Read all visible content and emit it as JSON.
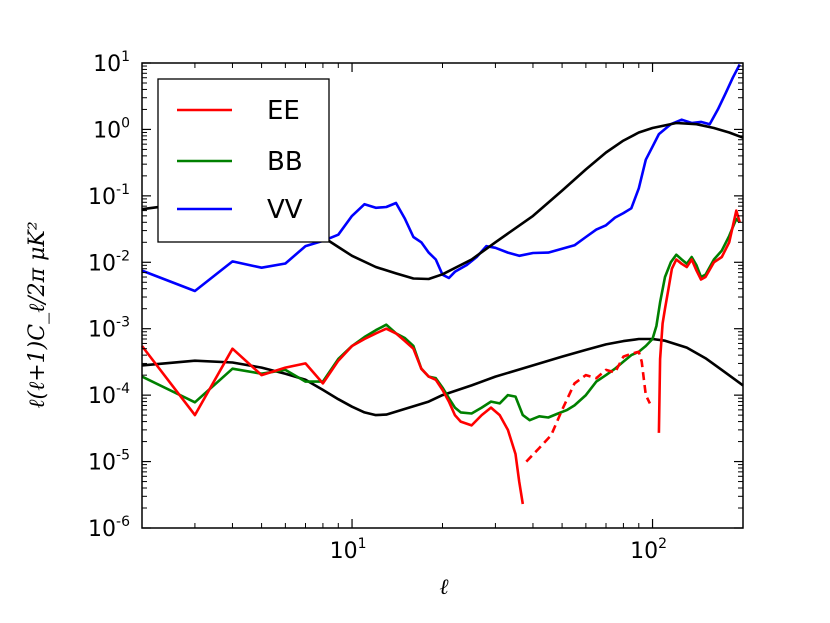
{
  "chart_data": {
    "type": "line",
    "title": "",
    "xlabel": "ℓ",
    "ylabel": "ℓ(ℓ+1)C_ℓ/2π μK²",
    "xscale": "log",
    "yscale": "log",
    "xlim": [
      2,
      200
    ],
    "ylim": [
      1e-06,
      10
    ],
    "grid": false,
    "legend": {
      "position": "top-left",
      "entries": [
        "EE",
        "BB",
        "VV"
      ]
    },
    "x_ticks": [
      {
        "value": 10,
        "base": "10",
        "exp": "1"
      },
      {
        "value": 100,
        "base": "10",
        "exp": "2"
      }
    ],
    "y_ticks": [
      {
        "value": 1e-06,
        "base": "10",
        "exp": "-6"
      },
      {
        "value": 1e-05,
        "base": "10",
        "exp": "-5"
      },
      {
        "value": 0.0001,
        "base": "10",
        "exp": "-4"
      },
      {
        "value": 0.001,
        "base": "10",
        "exp": "-3"
      },
      {
        "value": 0.01,
        "base": "10",
        "exp": "-2"
      },
      {
        "value": 0.1,
        "base": "10",
        "exp": "-1"
      },
      {
        "value": 1,
        "base": "10",
        "exp": "0"
      },
      {
        "value": 10,
        "base": "10",
        "exp": "1"
      }
    ],
    "series": [
      {
        "name": "VV",
        "color": "#0000ff",
        "style": "solid",
        "points": [
          [
            2,
            0.0075
          ],
          [
            3,
            0.0037
          ],
          [
            4,
            0.0103
          ],
          [
            5,
            0.0083
          ],
          [
            6,
            0.0096
          ],
          [
            7,
            0.0175
          ],
          [
            8,
            0.021
          ],
          [
            9,
            0.026
          ],
          [
            10,
            0.05
          ],
          [
            11,
            0.075
          ],
          [
            12,
            0.066
          ],
          [
            13,
            0.068
          ],
          [
            14,
            0.078
          ],
          [
            15,
            0.045
          ],
          [
            16,
            0.024
          ],
          [
            17,
            0.02
          ],
          [
            18,
            0.014
          ],
          [
            19,
            0.011
          ],
          [
            20,
            0.0065
          ],
          [
            21,
            0.0058
          ],
          [
            22,
            0.0072
          ],
          [
            24,
            0.009
          ],
          [
            26,
            0.012
          ],
          [
            28,
            0.0175
          ],
          [
            30,
            0.0165
          ],
          [
            33,
            0.014
          ],
          [
            36,
            0.0125
          ],
          [
            40,
            0.0138
          ],
          [
            45,
            0.014
          ],
          [
            50,
            0.016
          ],
          [
            55,
            0.018
          ],
          [
            60,
            0.024
          ],
          [
            65,
            0.031
          ],
          [
            70,
            0.036
          ],
          [
            75,
            0.047
          ],
          [
            80,
            0.055
          ],
          [
            85,
            0.065
          ],
          [
            90,
            0.13
          ],
          [
            95,
            0.35
          ],
          [
            100,
            0.55
          ],
          [
            105,
            0.85
          ],
          [
            115,
            1.2
          ],
          [
            125,
            1.4
          ],
          [
            135,
            1.25
          ],
          [
            145,
            1.3
          ],
          [
            155,
            1.2
          ],
          [
            165,
            2.0
          ],
          [
            175,
            3.5
          ],
          [
            185,
            6.0
          ],
          [
            195,
            9.5
          ]
        ]
      },
      {
        "name": "",
        "color": "#000000",
        "style": "solid",
        "points": [
          [
            2,
            0.063
          ],
          [
            3,
            0.08
          ],
          [
            4,
            0.072
          ],
          [
            5,
            0.058
          ],
          [
            6,
            0.044
          ],
          [
            7,
            0.033
          ],
          [
            8,
            0.024
          ],
          [
            9,
            0.017
          ],
          [
            10,
            0.0125
          ],
          [
            12,
            0.0085
          ],
          [
            14,
            0.0068
          ],
          [
            16,
            0.0057
          ],
          [
            18,
            0.0056
          ],
          [
            20,
            0.0066
          ],
          [
            25,
            0.011
          ],
          [
            30,
            0.02
          ],
          [
            40,
            0.05
          ],
          [
            50,
            0.12
          ],
          [
            60,
            0.25
          ],
          [
            70,
            0.45
          ],
          [
            80,
            0.68
          ],
          [
            90,
            0.9
          ],
          [
            100,
            1.05
          ],
          [
            120,
            1.25
          ],
          [
            140,
            1.2
          ],
          [
            160,
            1.05
          ],
          [
            180,
            0.9
          ],
          [
            200,
            0.75
          ]
        ]
      },
      {
        "name": "",
        "color": "#000000",
        "style": "solid",
        "points": [
          [
            2,
            0.00028
          ],
          [
            3,
            0.00033
          ],
          [
            4,
            0.00031
          ],
          [
            5,
            0.00026
          ],
          [
            6,
            0.00021
          ],
          [
            7,
            0.00017
          ],
          [
            8,
            0.00012
          ],
          [
            9,
            8.7e-05
          ],
          [
            10,
            6.7e-05
          ],
          [
            11,
            5.5e-05
          ],
          [
            12,
            5e-05
          ],
          [
            13,
            5.1e-05
          ],
          [
            15,
            6.2e-05
          ],
          [
            18,
            8e-05
          ],
          [
            20,
            0.0001
          ],
          [
            25,
            0.00014
          ],
          [
            30,
            0.00019
          ],
          [
            40,
            0.00028
          ],
          [
            50,
            0.00038
          ],
          [
            60,
            0.00048
          ],
          [
            70,
            0.00058
          ],
          [
            80,
            0.00065
          ],
          [
            90,
            0.0007
          ],
          [
            100,
            0.0007
          ],
          [
            110,
            0.00066
          ],
          [
            130,
            0.00052
          ],
          [
            150,
            0.00036
          ],
          [
            170,
            0.00024
          ],
          [
            200,
            0.00014
          ]
        ]
      },
      {
        "name": "BB",
        "color": "#008000",
        "style": "solid",
        "points": [
          [
            2,
            0.00019
          ],
          [
            3,
            7.8e-05
          ],
          [
            4,
            0.00025
          ],
          [
            5,
            0.00021
          ],
          [
            6,
            0.00024
          ],
          [
            7,
            0.00016
          ],
          [
            8,
            0.00016
          ],
          [
            9,
            0.00035
          ],
          [
            10,
            0.00055
          ],
          [
            11,
            0.00075
          ],
          [
            12,
            0.00095
          ],
          [
            13,
            0.00115
          ],
          [
            14,
            0.00085
          ],
          [
            15,
            0.00072
          ],
          [
            16,
            0.00055
          ],
          [
            17,
            0.00025
          ],
          [
            18,
            0.00019
          ],
          [
            19,
            0.00018
          ],
          [
            20,
            0.00013
          ],
          [
            21,
            9e-05
          ],
          [
            22,
            6.5e-05
          ],
          [
            23,
            5.5e-05
          ],
          [
            25,
            5.3e-05
          ],
          [
            27,
            6.5e-05
          ],
          [
            29,
            8e-05
          ],
          [
            31,
            7.5e-05
          ],
          [
            33,
            0.0001
          ],
          [
            35,
            9.5e-05
          ],
          [
            37,
            5e-05
          ],
          [
            39,
            4.2e-05
          ],
          [
            42,
            4.8e-05
          ],
          [
            45,
            4.6e-05
          ],
          [
            48,
            5.2e-05
          ],
          [
            52,
            6e-05
          ],
          [
            55,
            7e-05
          ],
          [
            60,
            0.0001
          ],
          [
            65,
            0.00016
          ],
          [
            70,
            0.0002
          ],
          [
            75,
            0.00025
          ],
          [
            80,
            0.00032
          ],
          [
            85,
            0.0004
          ],
          [
            90,
            0.00045
          ],
          [
            95,
            0.00055
          ],
          [
            100,
            0.0007
          ],
          [
            103,
            0.0011
          ],
          [
            106,
            0.0025
          ],
          [
            110,
            0.006
          ],
          [
            115,
            0.01
          ],
          [
            120,
            0.013
          ],
          [
            125,
            0.011
          ],
          [
            130,
            0.0095
          ],
          [
            135,
            0.012
          ],
          [
            140,
            0.009
          ],
          [
            145,
            0.006
          ],
          [
            150,
            0.0065
          ],
          [
            160,
            0.011
          ],
          [
            170,
            0.015
          ],
          [
            180,
            0.025
          ],
          [
            190,
            0.045
          ],
          [
            195,
            0.04
          ]
        ]
      },
      {
        "name": "EE",
        "color": "#ff0000",
        "style": "solid",
        "points": [
          [
            2,
            0.00055
          ],
          [
            3,
            5e-05
          ],
          [
            4,
            0.0005
          ],
          [
            5,
            0.0002
          ],
          [
            6,
            0.00026
          ],
          [
            7,
            0.0003
          ],
          [
            8,
            0.00015
          ],
          [
            9,
            0.00033
          ],
          [
            10,
            0.00055
          ],
          [
            11,
            0.0007
          ],
          [
            12,
            0.00085
          ],
          [
            13,
            0.001
          ],
          [
            14,
            0.00085
          ],
          [
            15,
            0.00065
          ],
          [
            16,
            0.0005
          ],
          [
            17,
            0.00025
          ],
          [
            18,
            0.00019
          ],
          [
            19,
            0.00017
          ],
          [
            20,
            0.00012
          ],
          [
            21,
            8e-05
          ],
          [
            22,
            5e-05
          ],
          [
            23,
            4e-05
          ],
          [
            25,
            3.5e-05
          ],
          [
            27,
            5e-05
          ],
          [
            29,
            6.5e-05
          ],
          [
            31,
            5e-05
          ],
          [
            33,
            3e-05
          ],
          [
            35,
            1.3e-05
          ],
          [
            36,
            5e-06
          ],
          [
            37,
            2.3e-06
          ]
        ]
      },
      {
        "name": "",
        "color": "#ff0000",
        "style": "dashed",
        "points": [
          [
            38,
            1e-05
          ],
          [
            42,
            1.6e-05
          ],
          [
            46,
            2.5e-05
          ],
          [
            50,
            6e-05
          ],
          [
            55,
            0.00015
          ],
          [
            60,
            0.0002
          ],
          [
            65,
            0.00018
          ],
          [
            70,
            0.00024
          ],
          [
            75,
            0.00022
          ],
          [
            80,
            0.00038
          ],
          [
            85,
            0.00042
          ],
          [
            90,
            0.00045
          ],
          [
            92,
            0.00032
          ],
          [
            95,
            0.0001
          ],
          [
            98,
            7.5e-05
          ]
        ]
      },
      {
        "name": "",
        "color": "#ff0000",
        "style": "solid",
        "points": [
          [
            105,
            2.7e-05
          ],
          [
            106,
            0.00035
          ],
          [
            108,
            0.0012
          ],
          [
            110,
            0.002
          ],
          [
            113,
            0.004
          ],
          [
            116,
            0.008
          ],
          [
            120,
            0.011
          ],
          [
            125,
            0.0095
          ],
          [
            130,
            0.0085
          ],
          [
            135,
            0.011
          ],
          [
            140,
            0.0075
          ],
          [
            145,
            0.0055
          ],
          [
            150,
            0.006
          ],
          [
            160,
            0.01
          ],
          [
            170,
            0.012
          ],
          [
            180,
            0.02
          ],
          [
            190,
            0.06
          ],
          [
            195,
            0.04
          ]
        ]
      }
    ]
  }
}
